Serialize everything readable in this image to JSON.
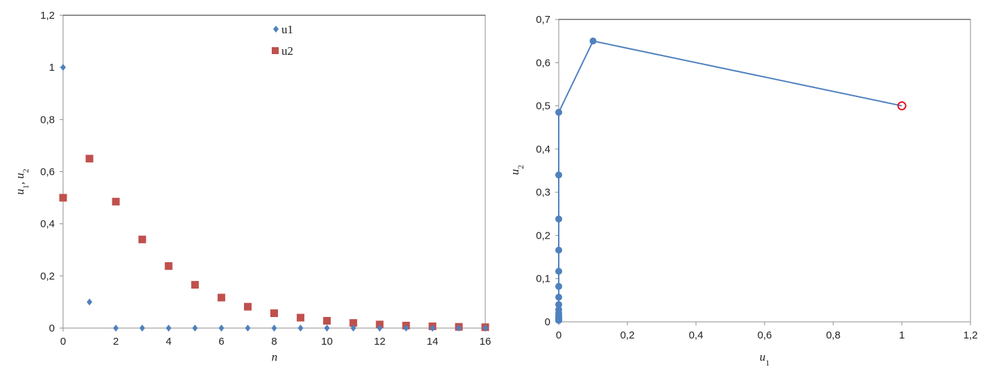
{
  "chart_data": [
    {
      "type": "scatter",
      "xlabel": "n",
      "ylabel": "u1, u2",
      "ylabel_parts": {
        "a": "u",
        "a_sub": "1",
        "sep": ", ",
        "b": "u",
        "b_sub": "2"
      },
      "xlim": [
        0,
        16
      ],
      "ylim": [
        0,
        1.2
      ],
      "xticks": [
        "0",
        "2",
        "4",
        "6",
        "8",
        "10",
        "12",
        "14",
        "16"
      ],
      "yticks": [
        "0",
        "0,2",
        "0,4",
        "0,6",
        "0,8",
        "1",
        "1,2"
      ],
      "grid": false,
      "legend": "top-center",
      "x": [
        0,
        1,
        2,
        3,
        4,
        5,
        6,
        7,
        8,
        9,
        10,
        11,
        12,
        13,
        14,
        15,
        16
      ],
      "series": [
        {
          "name": "u1",
          "marker": "diamond",
          "color": "#4f81bd",
          "values": [
            1,
            0.1,
            0,
            0,
            0,
            0,
            0,
            0,
            0,
            0,
            0,
            0,
            0,
            0,
            0,
            0,
            0
          ]
        },
        {
          "name": "u2",
          "marker": "square",
          "color": "#c0504d",
          "values": [
            0.5,
            0.65,
            0.485,
            0.34,
            0.238,
            0.166,
            0.117,
            0.082,
            0.057,
            0.04,
            0.028,
            0.0196,
            0.0137,
            0.0096,
            0.0067,
            0.0047,
            0.0033
          ]
        }
      ]
    },
    {
      "type": "line",
      "xlabel": "u1",
      "xlabel_parts": {
        "a": "u",
        "a_sub": "1"
      },
      "ylabel": "u2",
      "ylabel_parts": {
        "a": "u",
        "a_sub": "2"
      },
      "xlim": [
        0,
        1.2
      ],
      "ylim": [
        0,
        0.7
      ],
      "xticks": [
        "0",
        "0,2",
        "0,4",
        "0,6",
        "0,8",
        "1",
        "1,2"
      ],
      "yticks": [
        "0",
        "0,1",
        "0,2",
        "0,3",
        "0,4",
        "0,5",
        "0,6",
        "0,7"
      ],
      "grid": false,
      "color": "#4f81bd",
      "start_marker_color": "#e0101a",
      "points": [
        [
          1,
          0.5
        ],
        [
          0.1,
          0.65
        ],
        [
          0,
          0.485
        ],
        [
          0,
          0.34
        ],
        [
          0,
          0.238
        ],
        [
          0,
          0.166
        ],
        [
          0,
          0.117
        ],
        [
          0,
          0.082
        ],
        [
          0,
          0.057
        ],
        [
          0,
          0.04
        ],
        [
          0,
          0.028
        ],
        [
          0,
          0.0196
        ],
        [
          0,
          0.0137
        ],
        [
          0,
          0.0096
        ],
        [
          0,
          0.0067
        ],
        [
          0,
          0.0047
        ],
        [
          0,
          0.0033
        ]
      ]
    }
  ]
}
